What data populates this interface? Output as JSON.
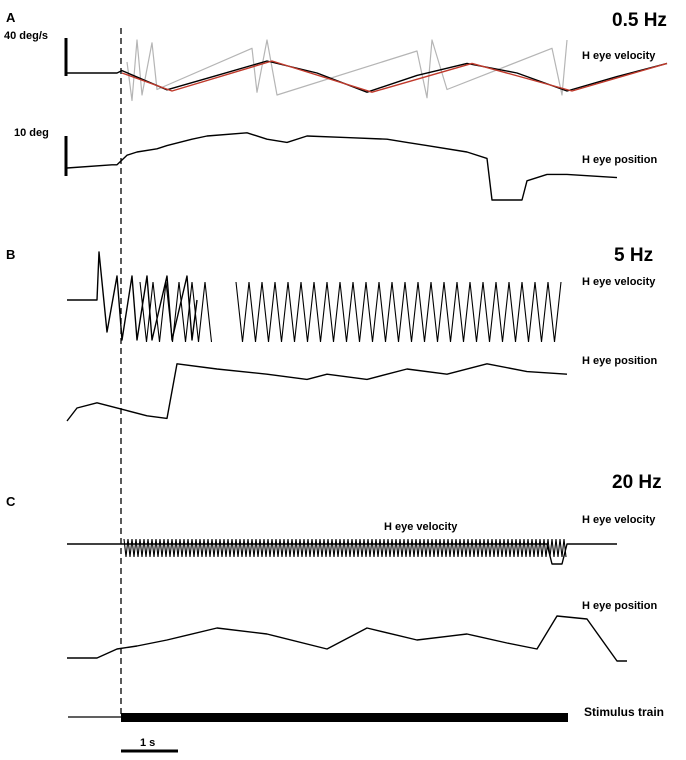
{
  "chart_data": {
    "type": "line",
    "panels": [
      {
        "letter": "A",
        "frequency": "0.5 Hz",
        "velocity_label": "H eye velocity",
        "position_label": "H eye position",
        "velocity_scale": "40 deg/s",
        "position_scale": "10 deg",
        "velocity_trace": [
          [
            0.0,
            0
          ],
          [
            0.5,
            0
          ],
          [
            0.55,
            2
          ],
          [
            1.0,
            -14
          ],
          [
            1.5,
            -2
          ],
          [
            2.0,
            10
          ],
          [
            2.5,
            0
          ],
          [
            3.0,
            -16
          ],
          [
            3.5,
            -2
          ],
          [
            4.0,
            8
          ],
          [
            4.5,
            0
          ],
          [
            5.0,
            -15
          ],
          [
            5.5,
            -3
          ],
          [
            6.0,
            8
          ]
        ],
        "velocity_fit": [
          [
            0.55,
            0
          ],
          [
            1.05,
            -15
          ],
          [
            2.05,
            10
          ],
          [
            3.05,
            -16
          ],
          [
            4.05,
            8
          ],
          [
            5.05,
            -15
          ],
          [
            6.0,
            8
          ]
        ],
        "saccade_trace": [
          [
            0.6,
            20
          ],
          [
            0.65,
            -50
          ],
          [
            0.7,
            60
          ],
          [
            0.75,
            -40
          ],
          [
            0.85,
            55
          ],
          [
            0.9,
            -30
          ],
          [
            1.85,
            45
          ],
          [
            1.9,
            -35
          ],
          [
            2.0,
            60
          ],
          [
            2.1,
            -40
          ],
          [
            3.5,
            40
          ],
          [
            3.6,
            -45
          ],
          [
            3.65,
            60
          ],
          [
            3.8,
            -30
          ],
          [
            4.85,
            45
          ],
          [
            4.95,
            -40
          ],
          [
            5.0,
            60
          ]
        ],
        "position_trace": [
          [
            0.0,
            0
          ],
          [
            0.45,
            1
          ],
          [
            0.5,
            1
          ],
          [
            0.6,
            4
          ],
          [
            0.7,
            5
          ],
          [
            0.9,
            6
          ],
          [
            1.0,
            7
          ],
          [
            1.25,
            9
          ],
          [
            1.4,
            10
          ],
          [
            1.8,
            11
          ],
          [
            2.0,
            9
          ],
          [
            2.2,
            8
          ],
          [
            2.4,
            10
          ],
          [
            2.8,
            9.5
          ],
          [
            3.2,
            9
          ],
          [
            3.4,
            8
          ],
          [
            3.6,
            7
          ],
          [
            4.0,
            5
          ],
          [
            4.2,
            3
          ],
          [
            4.25,
            -10
          ],
          [
            4.55,
            -10
          ],
          [
            4.6,
            -4
          ],
          [
            4.8,
            -2
          ],
          [
            5.0,
            -2
          ],
          [
            5.5,
            -3
          ]
        ]
      },
      {
        "letter": "B",
        "frequency": "5 Hz",
        "velocity_label": "H eye velocity",
        "position_label": "H eye position",
        "velocity_trace": [
          [
            0.0,
            0
          ],
          [
            0.3,
            0
          ],
          [
            0.32,
            30
          ],
          [
            0.4,
            -20
          ],
          [
            0.5,
            15
          ],
          [
            0.55,
            -25
          ],
          [
            0.65,
            15
          ],
          [
            0.7,
            -25
          ],
          [
            0.8,
            15
          ],
          [
            0.85,
            -25
          ],
          [
            1.0,
            15
          ],
          [
            1.05,
            -25
          ],
          [
            1.2,
            15
          ],
          [
            1.25,
            -25
          ],
          [
            1.3,
            0
          ]
        ],
        "position_trace": [
          [
            0.0,
            -10
          ],
          [
            0.1,
            -5
          ],
          [
            0.3,
            -3
          ],
          [
            0.6,
            -6
          ],
          [
            0.8,
            -8
          ],
          [
            1.0,
            -9
          ],
          [
            1.1,
            12
          ],
          [
            1.5,
            10
          ],
          [
            2.0,
            8
          ],
          [
            2.4,
            6
          ],
          [
            2.6,
            8
          ],
          [
            3.0,
            6
          ],
          [
            3.4,
            10
          ],
          [
            3.8,
            8
          ],
          [
            4.2,
            12
          ],
          [
            4.6,
            9
          ],
          [
            5.0,
            8
          ]
        ]
      },
      {
        "letter": "C",
        "frequency": "20 Hz",
        "velocity_label": "H eye velocity",
        "velocity_label_inset": "H eye velocity",
        "position_label": "H eye position",
        "velocity_trace": [
          [
            0.0,
            0
          ],
          [
            0.5,
            0
          ],
          [
            4.8,
            0
          ],
          [
            4.85,
            -20
          ],
          [
            4.95,
            -20
          ],
          [
            5.0,
            0
          ],
          [
            5.5,
            0
          ]
        ],
        "position_trace": [
          [
            0.0,
            -6
          ],
          [
            0.3,
            -6
          ],
          [
            0.5,
            -3
          ],
          [
            0.7,
            -2
          ],
          [
            1.0,
            0
          ],
          [
            1.5,
            4
          ],
          [
            2.0,
            2
          ],
          [
            2.6,
            -3
          ],
          [
            3.0,
            4
          ],
          [
            3.5,
            0
          ],
          [
            4.0,
            2
          ],
          [
            4.4,
            -1
          ],
          [
            4.7,
            -3
          ],
          [
            4.9,
            8
          ],
          [
            5.2,
            7
          ],
          [
            5.5,
            -7
          ],
          [
            5.6,
            -7
          ]
        ]
      }
    ],
    "stimulus_label": "Stimulus train",
    "time_scale_label": "1 s",
    "time_scale_value_s": 1,
    "x_unit": "s",
    "stimulus_onset_s": 0.5,
    "colors": {
      "trace": "#000000",
      "fit": "#c0392b",
      "saccade": "#b5b5b5"
    }
  }
}
